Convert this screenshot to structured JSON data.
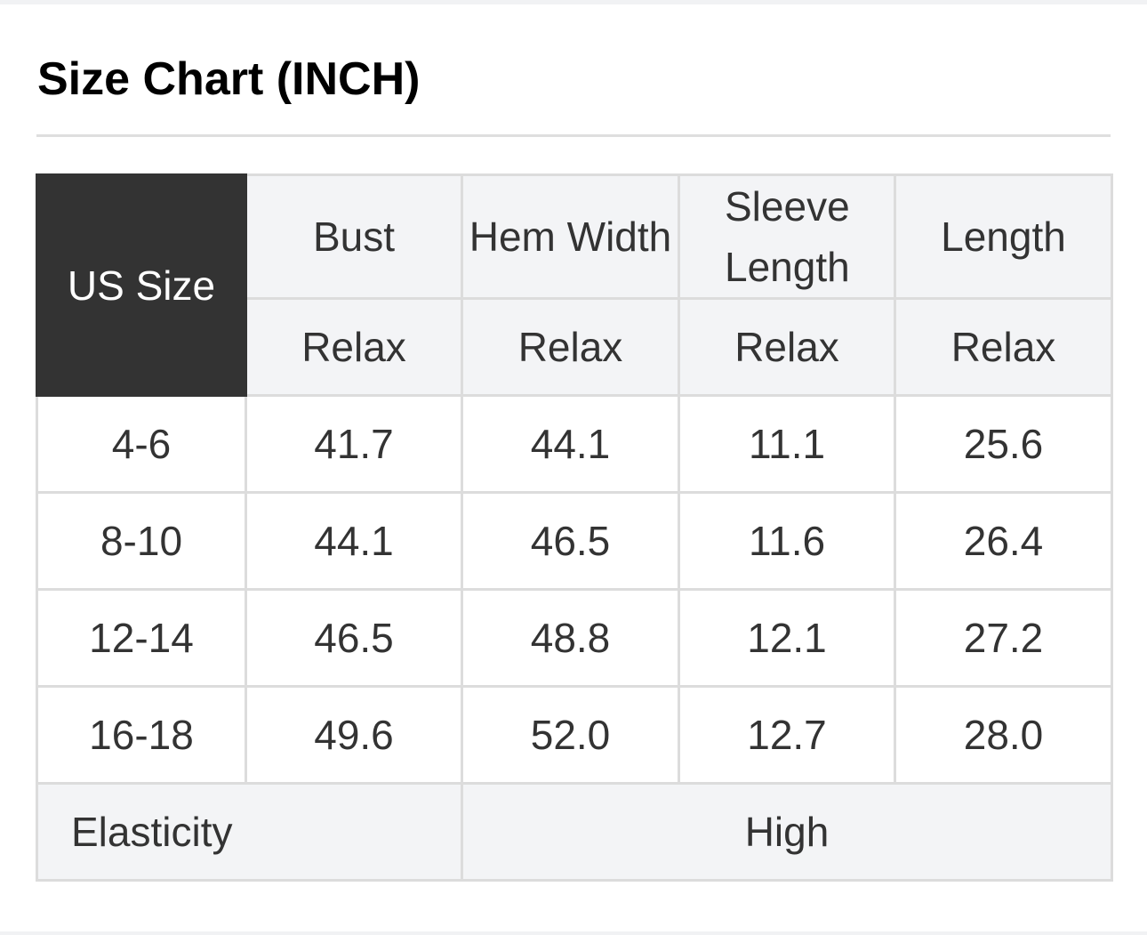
{
  "title": "Size Chart (INCH)",
  "table": {
    "corner": "US Size",
    "columns": [
      {
        "name": "Bust",
        "sub": "Relax"
      },
      {
        "name": "Hem Width",
        "sub": "Relax"
      },
      {
        "name": "Sleeve Length",
        "sub": "Relax"
      },
      {
        "name": "Length",
        "sub": "Relax"
      }
    ],
    "rows": [
      {
        "size": "4-6",
        "values": [
          "41.7",
          "44.1",
          "11.1",
          "25.6"
        ]
      },
      {
        "size": "8-10",
        "values": [
          "44.1",
          "46.5",
          "11.6",
          "26.4"
        ]
      },
      {
        "size": "12-14",
        "values": [
          "46.5",
          "48.8",
          "12.1",
          "27.2"
        ]
      },
      {
        "size": "16-18",
        "values": [
          "49.6",
          "52.0",
          "12.7",
          "28.0"
        ]
      }
    ],
    "footer": {
      "label": "Elasticity",
      "value": "High"
    }
  },
  "colors": {
    "header_bg": "#f3f4f6",
    "corner_bg": "#333333",
    "border": "#dcdcdc",
    "text": "#333333"
  }
}
